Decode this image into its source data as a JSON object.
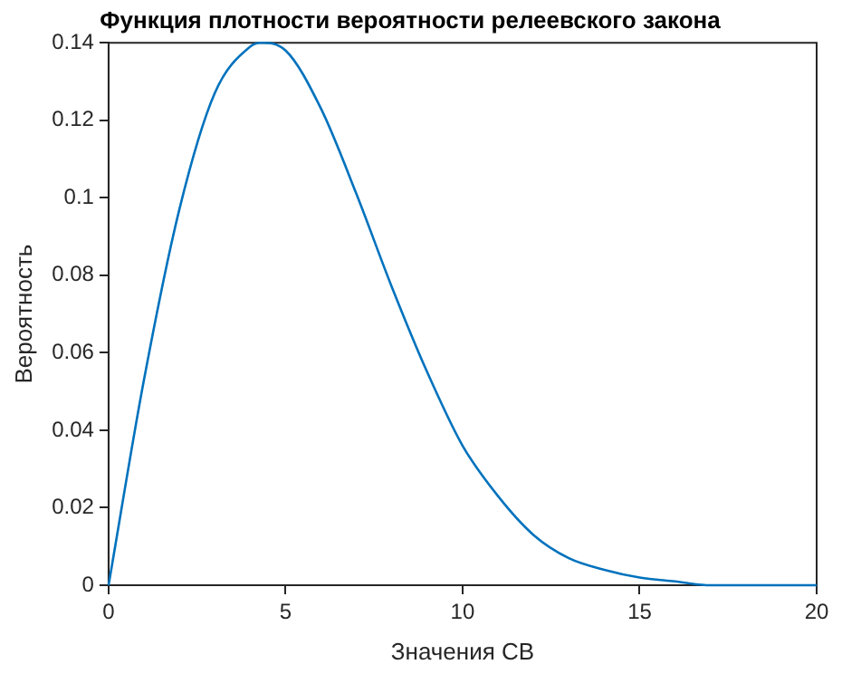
{
  "chart_data": {
    "type": "line",
    "title": "Функция плотности вероятности релеевского закона",
    "xlabel": "Значения СВ",
    "ylabel": "Вероятность",
    "x": [
      0,
      1,
      2,
      3,
      4,
      4.3,
      5,
      6,
      7,
      8,
      9,
      10,
      11,
      12,
      13,
      14,
      15,
      16,
      17,
      18,
      19,
      20
    ],
    "series": [
      {
        "color": "#0072bd",
        "values": [
          0,
          0.053,
          0.097,
          0.127,
          0.139,
          0.14,
          0.138,
          0.123,
          0.101,
          0.077,
          0.055,
          0.036,
          0.023,
          0.013,
          0.007,
          0.004,
          0.002,
          0.001,
          0,
          0,
          0,
          0
        ]
      }
    ],
    "xlim": [
      0,
      20
    ],
    "xticks": [
      0,
      5,
      10,
      15,
      20
    ],
    "ylim": [
      0,
      0.14
    ],
    "yticks": [
      0,
      0.02,
      0.04,
      0.06,
      0.08,
      0.1,
      0.12,
      0.14
    ],
    "grid": false,
    "legend": false,
    "marker": "none",
    "line_style": "solid"
  }
}
